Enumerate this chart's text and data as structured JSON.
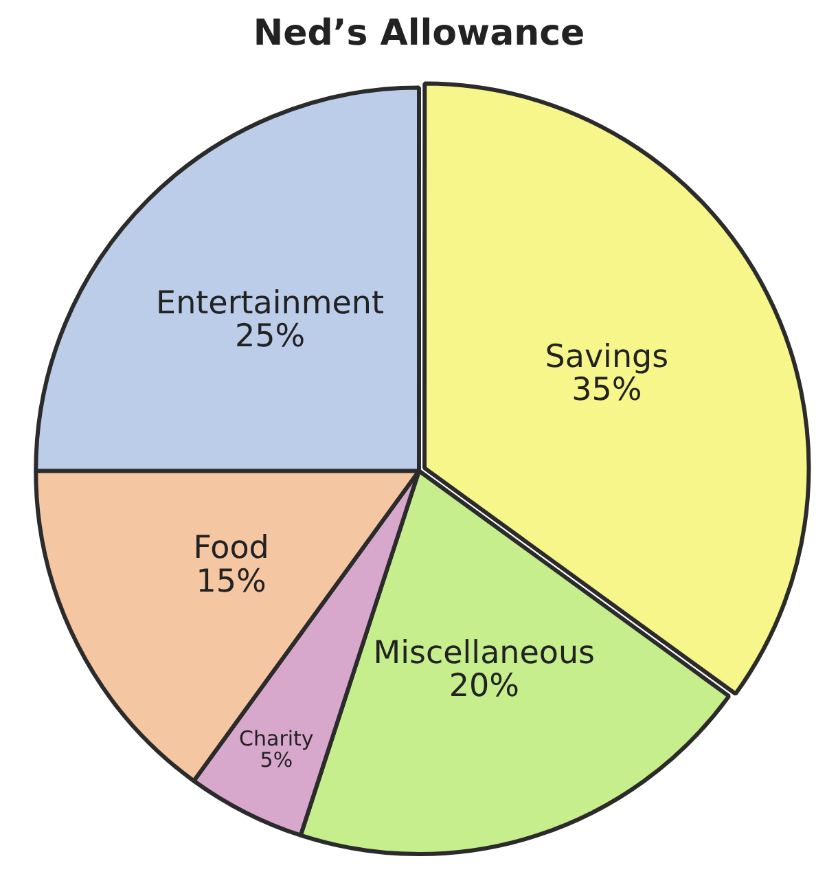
{
  "chart_data": {
    "type": "pie",
    "title": "Ned’s Allowance",
    "categories": [
      "Savings",
      "Miscellaneous",
      "Charity",
      "Food",
      "Entertainment"
    ],
    "values": [
      35,
      20,
      5,
      15,
      25
    ],
    "value_labels": [
      "35%",
      "20%",
      "5%",
      "15%",
      "25%"
    ],
    "colors": [
      "#f6f68a",
      "#c6ee8c",
      "#d8a8cc",
      "#f5c6a2",
      "#bccdea"
    ],
    "legend": false
  }
}
